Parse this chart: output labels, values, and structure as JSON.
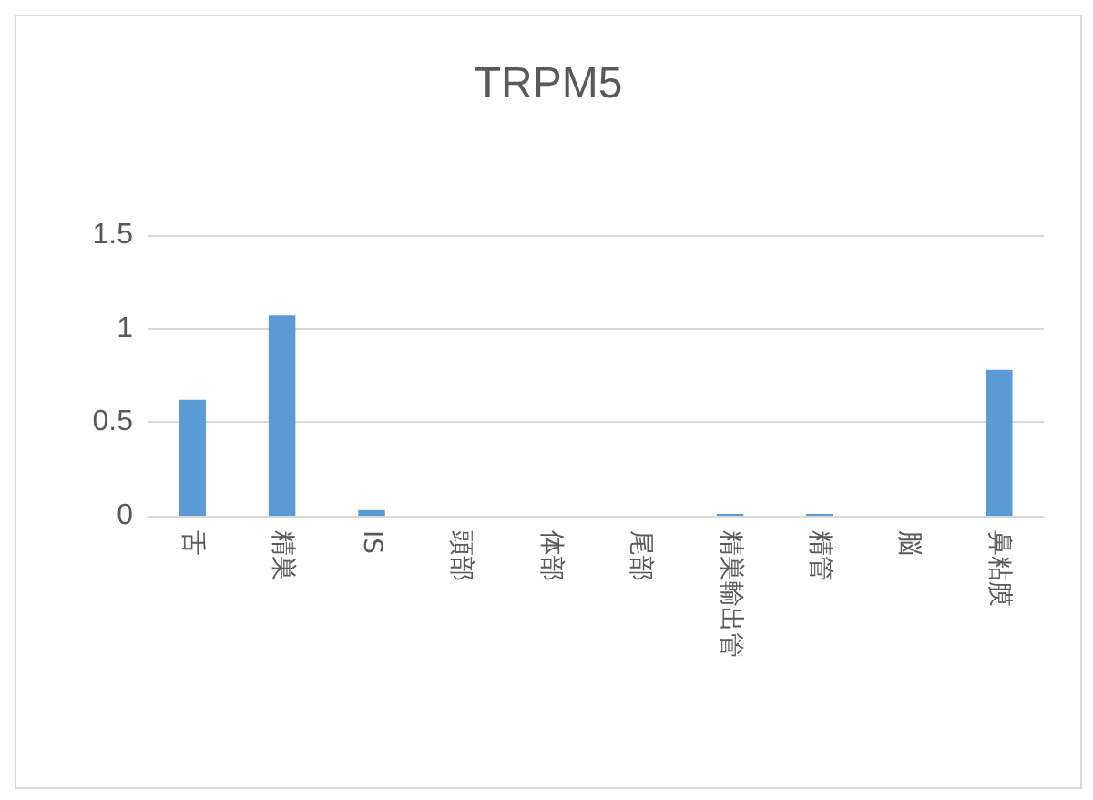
{
  "chart_data": {
    "type": "bar",
    "title": "TRPM5",
    "categories": [
      "舌",
      "精巣",
      "IS",
      "頭部",
      "体部",
      "尾部",
      "精巣輸出管",
      "精管",
      "脳",
      "鼻粘膜"
    ],
    "values": [
      0.62,
      1.07,
      0.03,
      0,
      0,
      0,
      0.01,
      0.01,
      0,
      0.78
    ],
    "color": "#5b9bd5",
    "ylim": [
      0,
      1.5
    ],
    "yticks": [
      0,
      0.5,
      1,
      1.5
    ],
    "grid": "y"
  }
}
